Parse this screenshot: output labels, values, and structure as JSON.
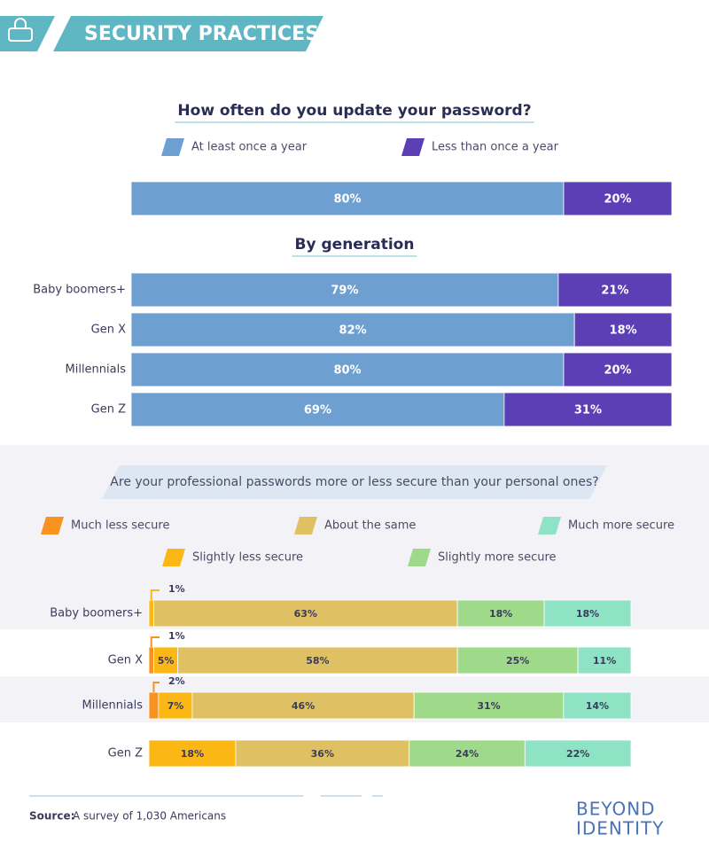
{
  "header": {
    "title": "SECURITY PRACTICES"
  },
  "chart_data": [
    {
      "type": "stacked_bar",
      "title": "How often do you update your password?",
      "categories": [
        null
      ],
      "xlim": [
        0,
        100
      ],
      "series": [
        {
          "name": "At least once a year",
          "color": "#6e9fd1",
          "values": [
            80
          ],
          "value_labels": [
            "80%"
          ]
        },
        {
          "name": "Less than once a year",
          "color": "#5c3fb5",
          "values": [
            20
          ],
          "value_labels": [
            "20%"
          ]
        }
      ]
    },
    {
      "type": "stacked_bar",
      "title": "By generation",
      "categories": [
        "Baby boomers+",
        "Gen X",
        "Millennials",
        "Gen Z"
      ],
      "xlim": [
        0,
        100
      ],
      "series": [
        {
          "color": "#6e9fd1",
          "values": [
            79,
            82,
            80,
            69
          ],
          "value_labels": [
            "79%",
            "82%",
            "80%",
            "69%"
          ]
        },
        {
          "color": "#5c3fb5",
          "values": [
            21,
            18,
            20,
            31
          ],
          "value_labels": [
            "21%",
            "18%",
            "20%",
            "31%"
          ]
        }
      ]
    },
    {
      "type": "stacked_bar",
      "title": "Are your professional passwords more or less secure than your personal ones?",
      "categories": [
        "Baby boomers+",
        "Gen X",
        "Millennials",
        "Gen Z"
      ],
      "xlim": [
        0,
        100
      ],
      "series": [
        {
          "name": "Much less secure",
          "color": "#f7931e",
          "values": [
            0,
            1,
            2,
            0
          ],
          "value_labels": [
            null,
            "1%",
            "2%",
            null
          ]
        },
        {
          "name": "Slightly less secure",
          "color": "#fbb714",
          "values": [
            1,
            5,
            7,
            18
          ],
          "value_labels": [
            "1%",
            "5%",
            "7%",
            "18%"
          ]
        },
        {
          "name": "About the same",
          "color": "#dfc163",
          "values": [
            63,
            58,
            46,
            36
          ],
          "value_labels": [
            "63%",
            "58%",
            "46%",
            "36%"
          ]
        },
        {
          "name": "Slightly more secure",
          "color": "#9fda8a",
          "values": [
            18,
            25,
            31,
            24
          ],
          "value_labels": [
            "18%",
            "25%",
            "31%",
            "24%"
          ]
        },
        {
          "name": "Much more secure",
          "color": "#8de3c4",
          "values": [
            18,
            11,
            14,
            22
          ],
          "value_labels": [
            "18%",
            "11%",
            "14%",
            "22%"
          ]
        }
      ]
    }
  ],
  "footer": {
    "source_label": "Source:",
    "source_text": "A survey of 1,030 Americans",
    "logo_line1": "BEYOND",
    "logo_line2": "IDENTITY"
  }
}
